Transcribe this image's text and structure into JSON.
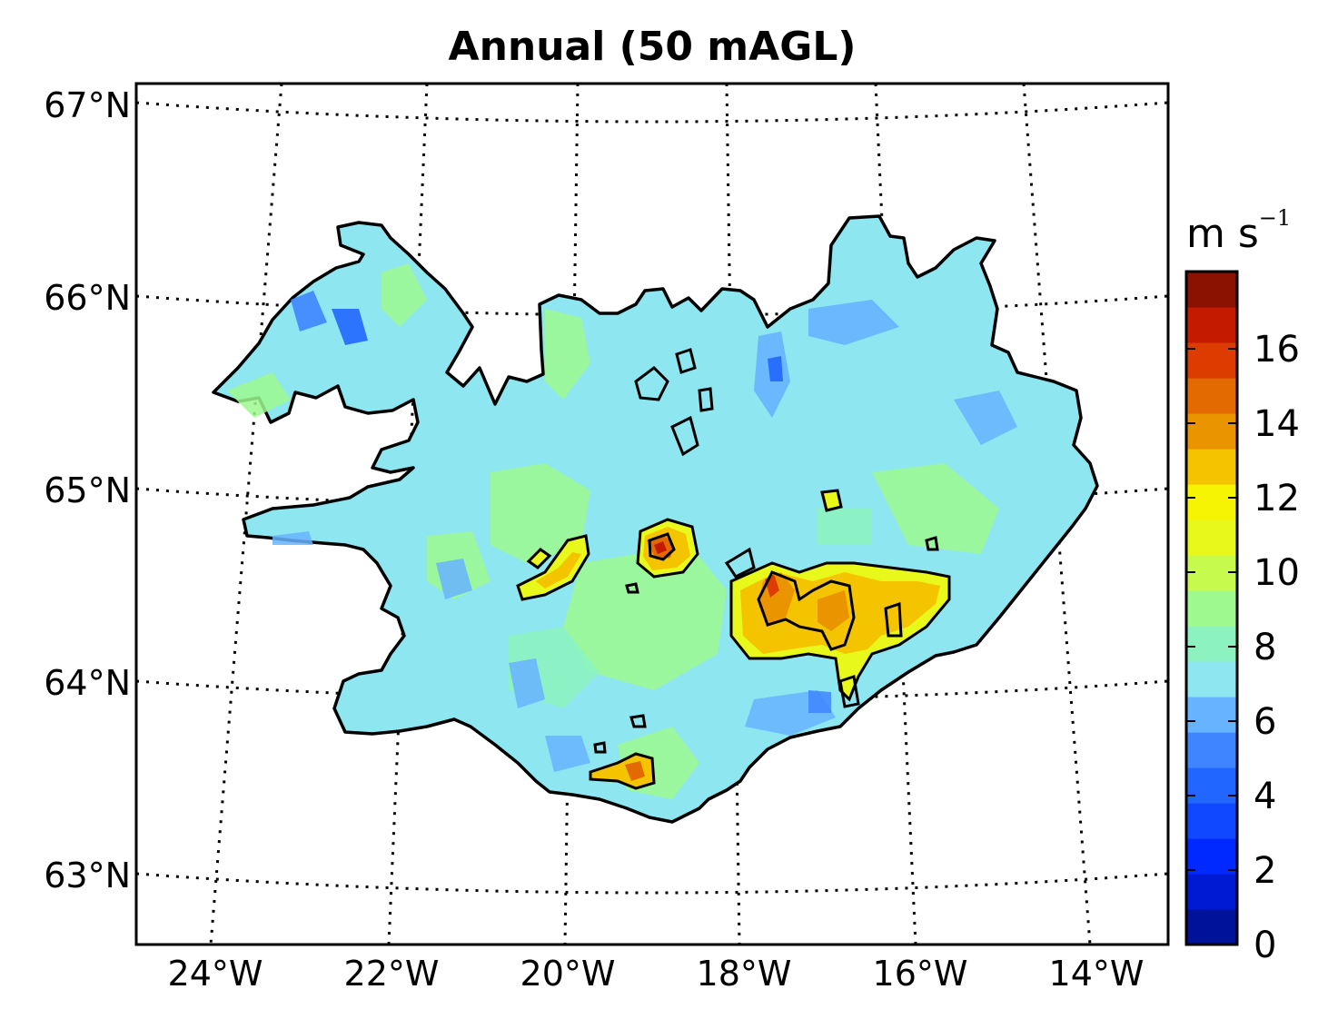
{
  "title": "Annual (50 mAGL)",
  "lat_labels": [
    "67°N",
    "66°N",
    "65°N",
    "64°N",
    "63°N"
  ],
  "lon_labels": [
    "24°W",
    "22°W",
    "20°W",
    "18°W",
    "16°W",
    "14°W"
  ],
  "colorbar": {
    "unit_base": "m s",
    "unit_exp": "−1",
    "tick_labels": [
      "0",
      "2",
      "4",
      "6",
      "8",
      "10",
      "12",
      "14",
      "16"
    ],
    "colors": [
      "#00129a",
      "#001ad3",
      "#0029ff",
      "#0f48ff",
      "#2167ff",
      "#3f85ff",
      "#67b3ff",
      "#8ee6f0",
      "#8cf3c0",
      "#9ef98f",
      "#c6fb4d",
      "#e8f81a",
      "#f7f400",
      "#f5c400",
      "#ea9400",
      "#e26a00",
      "#dc3c00",
      "#c41a00",
      "#8b1200"
    ]
  },
  "map": {
    "land_color": "#8ee6f0",
    "contour_color": "#000000",
    "graticule_style": "dotted"
  }
}
